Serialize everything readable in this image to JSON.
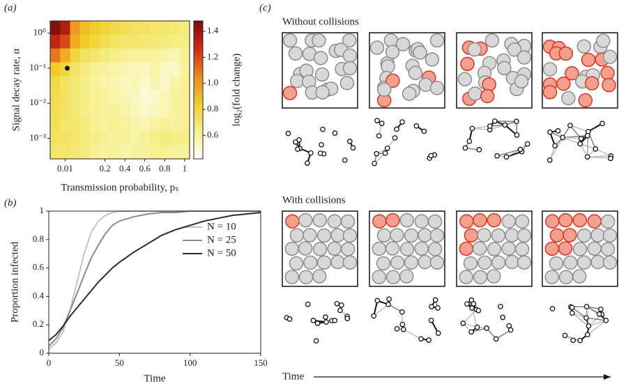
{
  "chart_data": [
    {
      "type": "heatmap",
      "panel_label": "(a)",
      "x_label": "Transmission probability, pₛ",
      "y_label": "Signal decay rate, α",
      "categories": [
        null,
        "0.01",
        null,
        null,
        null,
        "0.2",
        null,
        "0.4",
        null,
        "0.6",
        null,
        "0.8",
        null,
        "1"
      ],
      "z": [
        [
          1.45,
          1.35,
          1.0,
          0.9,
          0.85,
          0.8,
          0.78,
          0.75,
          0.72,
          0.72,
          0.7,
          0.7,
          0.68,
          0.66
        ],
        [
          1.3,
          1.2,
          0.95,
          0.85,
          0.8,
          0.75,
          0.72,
          0.7,
          0.7,
          0.68,
          0.68,
          0.66,
          0.65,
          0.65
        ],
        [
          1.1,
          0.95,
          0.8,
          0.72,
          0.7,
          0.66,
          0.64,
          0.62,
          0.6,
          0.6,
          0.6,
          0.58,
          0.56,
          0.62
        ],
        [
          0.85,
          0.8,
          0.72,
          0.66,
          0.62,
          0.6,
          0.58,
          0.56,
          0.55,
          0.54,
          0.58,
          0.52,
          0.52,
          0.6
        ],
        [
          0.78,
          0.72,
          0.68,
          0.64,
          0.6,
          0.58,
          0.56,
          0.54,
          0.56,
          0.52,
          0.56,
          0.52,
          0.58,
          0.62
        ],
        [
          0.76,
          0.72,
          0.68,
          0.65,
          0.62,
          0.6,
          0.58,
          0.56,
          0.54,
          0.5,
          0.52,
          0.55,
          0.6,
          0.62
        ],
        [
          0.74,
          0.72,
          0.68,
          0.64,
          0.62,
          0.6,
          0.6,
          0.58,
          0.55,
          0.52,
          0.54,
          0.56,
          0.6,
          0.62
        ],
        [
          0.74,
          0.7,
          0.7,
          0.66,
          0.62,
          0.6,
          0.62,
          0.6,
          0.58,
          0.56,
          0.6,
          0.62,
          0.6,
          0.62
        ],
        [
          0.72,
          0.72,
          0.7,
          0.66,
          0.64,
          0.62,
          0.6,
          0.6,
          0.58,
          0.62,
          0.64,
          0.66,
          0.64,
          0.64
        ],
        [
          0.7,
          0.7,
          0.68,
          0.66,
          0.62,
          0.6,
          0.6,
          0.58,
          0.6,
          0.6,
          0.62,
          0.62,
          0.6,
          0.6
        ]
      ],
      "ylim": [
        0.00026,
        2.24
      ],
      "log_y": true,
      "yticks": [
        {
          "value": 1,
          "label": "10⁰"
        },
        {
          "value": 0.1,
          "label": "10⁻¹"
        },
        {
          "value": 0.01,
          "label": "10⁻²"
        },
        {
          "value": 0.001,
          "label": "10⁻³"
        }
      ],
      "marker": {
        "x": 0.02,
        "y": 0.1
      },
      "colorbar": {
        "label": "log₂(fold change)",
        "lim": [
          0.42,
          1.48
        ],
        "ticks": [
          0.6,
          0.8,
          {
            "value": 1,
            "label": "1.0"
          },
          1.2,
          1.4
        ],
        "colors": [
          "#ffffff",
          "#f6f08c",
          "#f2cf2a",
          "#ec8a1e",
          "#cf2b14",
          "#7a0c0c"
        ]
      }
    },
    {
      "type": "line",
      "panel_label": "(b)",
      "x_label": "Time",
      "y_label": "Proportion infected",
      "x": [
        0,
        5,
        10,
        15,
        20,
        25,
        30,
        35,
        40,
        45,
        50,
        60,
        70,
        80,
        90,
        100,
        110,
        120,
        130,
        140,
        150
      ],
      "series": [
        {
          "name": "N = 10",
          "color": "#c4c4c4",
          "values": [
            0.03,
            0.07,
            0.15,
            0.3,
            0.5,
            0.7,
            0.85,
            0.93,
            0.97,
            0.99,
            1,
            1,
            1,
            1,
            1,
            1,
            1,
            1,
            1,
            1,
            1
          ]
        },
        {
          "name": "N = 25",
          "color": "#8a8a8a",
          "values": [
            0.05,
            0.1,
            0.18,
            0.3,
            0.42,
            0.55,
            0.67,
            0.76,
            0.84,
            0.9,
            0.93,
            0.96,
            0.98,
            0.99,
            0.99,
            1,
            1,
            1,
            1,
            1,
            1
          ]
        },
        {
          "name": "N = 50",
          "color": "#2a2a2a",
          "values": [
            0.09,
            0.13,
            0.19,
            0.26,
            0.32,
            0.38,
            0.44,
            0.5,
            0.55,
            0.6,
            0.64,
            0.71,
            0.77,
            0.83,
            0.87,
            0.9,
            0.93,
            0.95,
            0.97,
            0.98,
            0.99
          ]
        }
      ],
      "xlim": [
        0,
        150
      ],
      "ylim": [
        0,
        1
      ],
      "xticks": [
        0,
        50,
        100,
        150
      ],
      "yticks": [
        0,
        0.2,
        0.4,
        0.6,
        0.8,
        1
      ],
      "legend": "upper right"
    }
  ],
  "panel_c": {
    "panel_label": "(c)",
    "rows": [
      {
        "title": "Without collisions"
      },
      {
        "title": "With collisions"
      }
    ],
    "time_label": "Time"
  }
}
